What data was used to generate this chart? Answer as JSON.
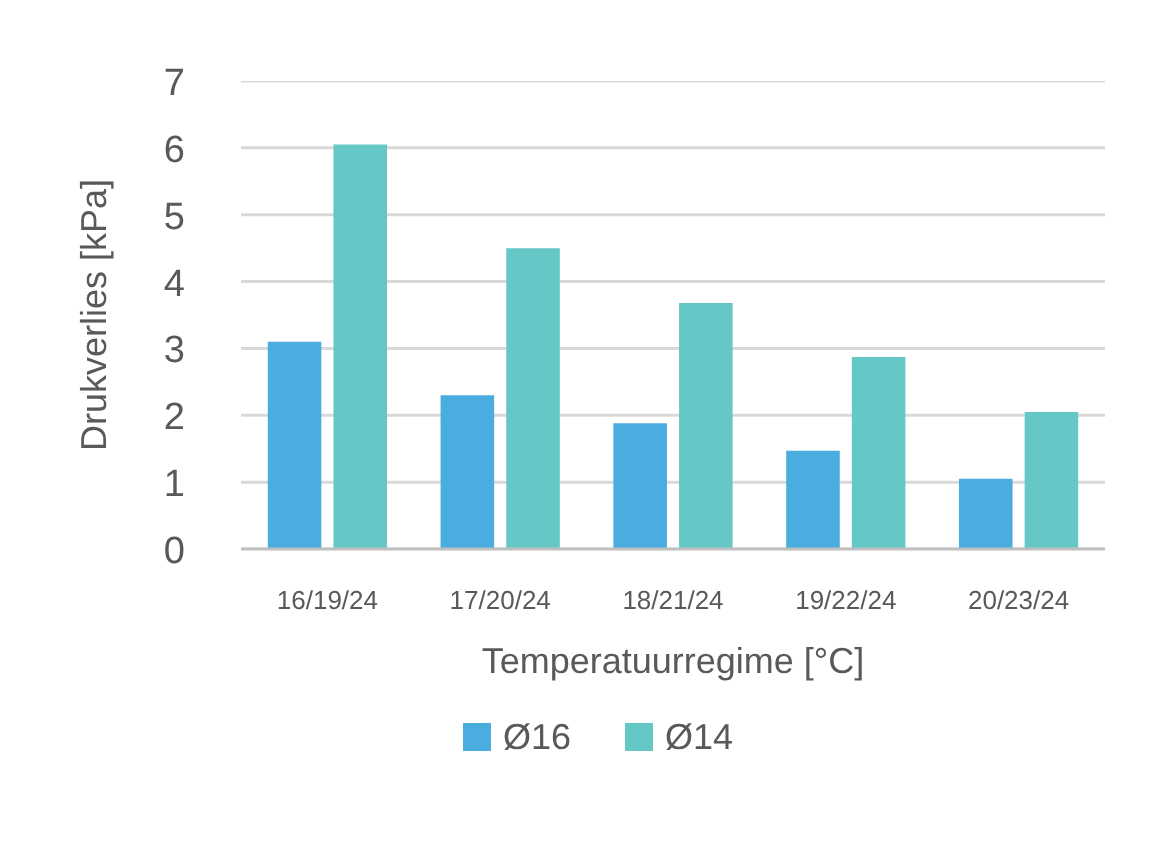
{
  "chart_data": {
    "type": "bar",
    "xlabel": "Temperatuurregime [°C]",
    "ylabel": "Drukverlies [kPa]",
    "categories": [
      "16/19/24",
      "17/20/24",
      "18/21/24",
      "19/22/24",
      "20/23/24"
    ],
    "series": [
      {
        "name": "Ø16",
        "color": "#4aade0",
        "values": [
          3.1,
          2.3,
          1.88,
          1.47,
          1.05
        ]
      },
      {
        "name": "Ø14",
        "color": "#66c7c7",
        "values": [
          6.05,
          4.5,
          3.68,
          2.87,
          2.05
        ]
      }
    ],
    "ylim": [
      0,
      7
    ],
    "yticks": [
      0,
      1,
      2,
      3,
      4,
      5,
      6,
      7
    ],
    "grid": "y",
    "legend": "bottom"
  }
}
